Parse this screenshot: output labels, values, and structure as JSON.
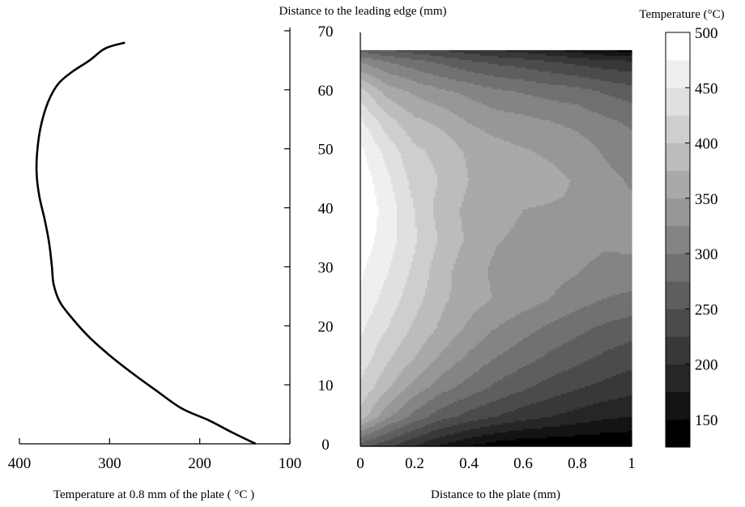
{
  "figure": {
    "top_label": "Distance to the leading edge (mm)",
    "colorbar_title": "Temperature (°C)"
  },
  "chart_data": [
    {
      "type": "line",
      "xlabel": "Temperature at 0.8 mm of the plate ( °C )",
      "ylabel": "",
      "xlim": [
        400,
        100
      ],
      "ylim": [
        0,
        70
      ],
      "x_ticks": [
        400,
        300,
        200,
        100
      ],
      "y_ticks": [
        0,
        10,
        20,
        30,
        40,
        50,
        60,
        70
      ],
      "series": [
        {
          "x": [
            138,
            165,
            190,
            220,
            248,
            275,
            300,
            322,
            340,
            355,
            362,
            364,
            367,
            372,
            378,
            381,
            380,
            376,
            368,
            357,
            342,
            322,
            305,
            283
          ],
          "y": [
            0,
            2,
            4,
            6,
            9,
            12,
            15,
            18,
            21,
            24,
            27,
            30,
            34,
            38,
            42,
            46,
            50,
            54,
            58,
            61,
            63,
            65,
            67,
            68
          ]
        }
      ]
    },
    {
      "type": "heatmap",
      "xlabel": "Distance to the plate (mm)",
      "ylabel": "",
      "xlim": [
        0,
        1
      ],
      "ylim": [
        0,
        70
      ],
      "x_ticks": [
        "0",
        "0.2",
        "0.4",
        "0.6",
        "0.8",
        "1"
      ],
      "y_ticks": [
        "0",
        "10",
        "20",
        "30",
        "40",
        "50",
        "60",
        "70"
      ],
      "domain_ymax": 67,
      "colorbar": {
        "range": [
          125,
          500
        ],
        "ticks": [
          150,
          200,
          250,
          300,
          350,
          400,
          450,
          500
        ],
        "levels": [
          125,
          150,
          175,
          200,
          225,
          250,
          275,
          300,
          325,
          350,
          375,
          400,
          425,
          450,
          475,
          500
        ],
        "colors": [
          "#000000",
          "#141414",
          "#262626",
          "#383838",
          "#4b4b4b",
          "#5e5e5e",
          "#717171",
          "#848484",
          "#979797",
          "#a9a9a9",
          "#bcbcbc",
          "#cecece",
          "#e0e0e0",
          "#efefef",
          "#ffffff"
        ]
      },
      "x_grid": [
        0,
        0.1,
        0.2,
        0.3,
        0.4,
        0.5,
        0.6,
        0.7,
        0.8,
        0.9,
        1
      ],
      "y_grid": [
        0,
        5,
        10,
        15,
        20,
        25,
        30,
        35,
        40,
        45,
        50,
        55,
        60,
        65,
        67
      ],
      "z": [
        [
          260,
          230,
          200,
          170,
          150,
          135,
          130,
          128,
          127,
          126,
          125
        ],
        [
          390,
          330,
          290,
          260,
          240,
          225,
          210,
          200,
          190,
          180,
          175
        ],
        [
          420,
          380,
          340,
          310,
          290,
          270,
          255,
          240,
          228,
          218,
          210
        ],
        [
          440,
          405,
          375,
          345,
          320,
          300,
          285,
          270,
          258,
          245,
          235
        ],
        [
          455,
          425,
          395,
          370,
          345,
          325,
          310,
          295,
          282,
          270,
          262
        ],
        [
          470,
          440,
          410,
          380,
          362,
          348,
          338,
          325,
          312,
          300,
          295
        ],
        [
          480,
          452,
          420,
          385,
          360,
          345,
          338,
          335,
          328,
          315,
          315
        ],
        [
          490,
          462,
          428,
          395,
          370,
          352,
          345,
          345,
          340,
          332,
          335
        ],
        [
          495,
          465,
          425,
          388,
          368,
          358,
          350,
          348,
          348,
          338,
          330
        ],
        [
          492,
          455,
          415,
          398,
          375,
          368,
          360,
          356,
          348,
          332,
          322
        ],
        [
          480,
          440,
          405,
          392,
          370,
          360,
          352,
          346,
          338,
          322,
          312
        ],
        [
          455,
          410,
          380,
          368,
          348,
          338,
          332,
          325,
          318,
          305,
          295
        ],
        [
          410,
          365,
          345,
          330,
          318,
          305,
          298,
          290,
          285,
          272,
          262
        ],
        [
          325,
          300,
          285,
          270,
          255,
          245,
          238,
          228,
          218,
          210,
          205
        ],
        [
          265,
          250,
          238,
          225,
          212,
          200,
          190,
          178,
          165,
          150,
          140
        ]
      ]
    }
  ]
}
